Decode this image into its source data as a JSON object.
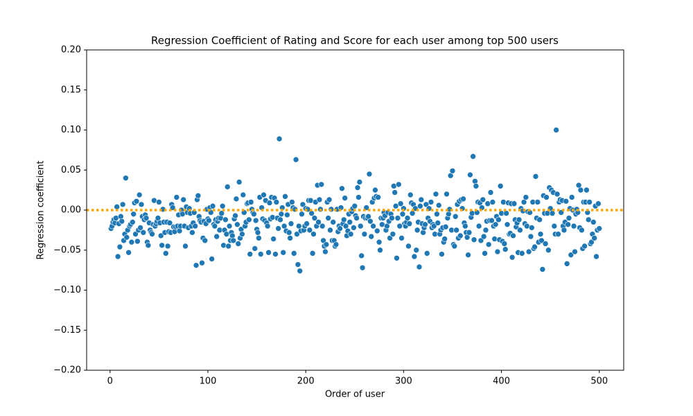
{
  "chart_data": {
    "type": "scatter",
    "title": "Regression Coefficient of Rating and Score for each user among top 500 users",
    "xlabel": "Order of user",
    "ylabel": "Regression coefficient",
    "color": "#1f77b4",
    "hline": {
      "value": 0,
      "color": "#ffa500"
    },
    "xlim": [
      -23.95,
      524.95
    ],
    "xticks": [
      0,
      100,
      200,
      300,
      400,
      500
    ],
    "ylim": [
      -0.2,
      0.2
    ],
    "yticks": [
      {
        "value": -0.2,
        "label": "−0.20"
      },
      {
        "value": -0.15,
        "label": "−0.15"
      },
      {
        "value": -0.1,
        "label": "−0.10"
      },
      {
        "value": -0.05,
        "label": "−0.05"
      },
      {
        "value": 0,
        "label": "0.00"
      },
      {
        "value": 0.05,
        "label": "0.05"
      },
      {
        "value": 0.1,
        "label": "0.10"
      },
      {
        "value": 0.15,
        "label": "0.15"
      },
      {
        "value": 0.2,
        "label": "0.20"
      }
    ],
    "x": [
      1,
      2,
      3,
      4,
      5,
      6,
      7,
      8,
      9,
      10,
      11,
      12,
      13,
      14,
      15,
      16,
      17,
      18,
      19,
      20,
      21,
      22,
      23,
      24,
      25,
      26,
      27,
      28,
      29,
      30,
      31,
      32,
      33,
      34,
      35,
      36,
      37,
      38,
      39,
      40,
      41,
      42,
      43,
      44,
      45,
      46,
      47,
      48,
      49,
      50,
      51,
      52,
      53,
      54,
      55,
      56,
      57,
      58,
      59,
      60,
      61,
      62,
      63,
      64,
      65,
      66,
      67,
      68,
      69,
      70,
      71,
      72,
      73,
      74,
      75,
      76,
      77,
      78,
      79,
      80,
      81,
      82,
      83,
      84,
      85,
      86,
      87,
      88,
      89,
      90,
      91,
      92,
      93,
      94,
      95,
      96,
      97,
      98,
      99,
      100,
      101,
      102,
      103,
      104,
      105,
      106,
      107,
      108,
      109,
      110,
      111,
      112,
      113,
      114,
      115,
      116,
      117,
      118,
      119,
      120,
      121,
      122,
      123,
      124,
      125,
      126,
      127,
      128,
      129,
      130,
      131,
      132,
      133,
      134,
      135,
      136,
      137,
      138,
      139,
      140,
      141,
      142,
      143,
      144,
      145,
      146,
      147,
      148,
      149,
      150,
      151,
      152,
      153,
      154,
      155,
      156,
      157,
      158,
      159,
      160,
      161,
      162,
      163,
      164,
      165,
      166,
      167,
      168,
      169,
      170,
      171,
      172,
      173,
      174,
      175,
      176,
      177,
      178,
      179,
      180,
      181,
      182,
      183,
      184,
      185,
      186,
      187,
      188,
      189,
      190,
      191,
      192,
      193,
      194,
      195,
      196,
      197,
      198,
      199,
      200,
      201,
      202,
      203,
      204,
      205,
      206,
      207,
      208,
      209,
      210,
      211,
      212,
      213,
      214,
      215,
      216,
      217,
      218,
      219,
      220,
      221,
      222,
      223,
      224,
      225,
      226,
      227,
      228,
      229,
      230,
      231,
      232,
      233,
      234,
      235,
      236,
      237,
      238,
      239,
      240,
      241,
      242,
      243,
      244,
      245,
      246,
      247,
      248,
      249,
      250,
      251,
      252,
      253,
      254,
      255,
      256,
      257,
      258,
      259,
      260,
      261,
      262,
      263,
      264,
      265,
      266,
      267,
      268,
      269,
      270,
      271,
      272,
      273,
      274,
      275,
      276,
      277,
      278,
      279,
      280,
      281,
      282,
      283,
      284,
      285,
      286,
      287,
      288,
      289,
      290,
      291,
      292,
      293,
      294,
      295,
      296,
      297,
      298,
      299,
      300,
      301,
      302,
      303,
      304,
      305,
      306,
      307,
      308,
      309,
      310,
      311,
      312,
      313,
      314,
      315,
      316,
      317,
      318,
      319,
      320,
      321,
      322,
      323,
      324,
      325,
      326,
      327,
      328,
      329,
      330,
      331,
      332,
      333,
      334,
      335,
      336,
      337,
      338,
      339,
      340,
      341,
      342,
      343,
      344,
      345,
      346,
      347,
      348,
      349,
      350,
      351,
      352,
      353,
      354,
      355,
      356,
      357,
      358,
      359,
      360,
      361,
      362,
      363,
      364,
      365,
      366,
      367,
      368,
      369,
      370,
      371,
      372,
      373,
      374,
      375,
      376,
      377,
      378,
      379,
      380,
      381,
      382,
      383,
      384,
      385,
      386,
      387,
      388,
      389,
      390,
      391,
      392,
      393,
      394,
      395,
      396,
      397,
      398,
      399,
      400,
      401,
      402,
      403,
      404,
      405,
      406,
      407,
      408,
      409,
      410,
      411,
      412,
      413,
      414,
      415,
      416,
      417,
      418,
      419,
      420,
      421,
      422,
      423,
      424,
      425,
      426,
      427,
      428,
      429,
      430,
      431,
      432,
      433,
      434,
      435,
      436,
      437,
      438,
      439,
      440,
      441,
      442,
      443,
      444,
      445,
      446,
      447,
      448,
      449,
      450,
      451,
      452,
      453,
      454,
      455,
      456,
      457,
      458,
      459,
      460,
      461,
      462,
      463,
      464,
      465,
      466,
      467,
      468,
      469,
      470,
      471,
      472,
      473,
      474,
      475,
      476,
      477,
      478,
      479,
      480,
      481,
      482,
      483,
      484,
      485,
      486,
      487,
      488,
      489,
      490,
      491,
      492,
      493,
      494,
      495,
      496,
      497,
      498,
      499,
      500
    ],
    "values": [
      -0.023,
      -0.02,
      -0.015,
      -0.012,
      -0.016,
      -0.01,
      0.004,
      -0.058,
      -0.017,
      -0.046,
      -0.008,
      -0.014,
      0.007,
      -0.038,
      -0.03,
      0.04,
      -0.034,
      -0.025,
      -0.053,
      -0.02,
      -0.018,
      -0.04,
      -0.015,
      -0.005,
      0.009,
      -0.03,
      0.011,
      -0.039,
      -0.025,
      0.019,
      -0.022,
      0.007,
      -0.008,
      -0.028,
      -0.012,
      -0.006,
      -0.01,
      -0.04,
      -0.044,
      -0.016,
      -0.025,
      -0.028,
      -0.03,
      -0.018,
      0.012,
      -0.02,
      -0.017,
      -0.014,
      -0.01,
      0.01,
      -0.016,
      -0.032,
      -0.044,
      0.001,
      -0.015,
      -0.028,
      -0.054,
      -0.015,
      -0.045,
      -0.027,
      -0.016,
      -0.028,
      0.007,
      0.003,
      -0.021,
      -0.027,
      -0.021,
      0.016,
      -0.02,
      -0.006,
      -0.026,
      -0.02,
      0,
      -0.005,
      0.013,
      -0.02,
      -0.045,
      0.004,
      -0.003,
      -0.022,
      0.002,
      -0.004,
      -0.02,
      -0.028,
      -0.016,
      -0.003,
      -0.02,
      -0.069,
      0.013,
      0.018,
      -0.008,
      -0.013,
      -0.015,
      -0.066,
      -0.035,
      -0.014,
      -0.038,
      -0.017,
      0.001,
      -0.011,
      -0.013,
      0.003,
      -0.003,
      -0.061,
      0.005,
      -0.018,
      -0.02,
      -0.012,
      -0.033,
      -0.014,
      -0.01,
      -0.025,
      -0.01,
      -0.004,
      0.005,
      -0.044,
      -0.025,
      -0.012,
      -0.03,
      0.029,
      -0.045,
      -0.02,
      -0.038,
      -0.028,
      -0.032,
      -0.038,
      -0.011,
      -0.007,
      0.014,
      -0.018,
      -0.042,
      0.035,
      -0.035,
      -0.024,
      -0.03,
      0.019,
      -0.003,
      -0.02,
      -0.015,
      0.008,
      0.009,
      -0.012,
      -0.055,
      0.01,
      0.001,
      -0.003,
      -0.005,
      -0.048,
      -0.013,
      -0.024,
      -0.028,
      -0.035,
      0.016,
      -0.055,
      0.003,
      -0.011,
      0.019,
      -0.013,
      0.012,
      -0.016,
      -0.02,
      -0.053,
      0.009,
      -0.011,
      0.016,
      -0.009,
      -0.036,
      0.015,
      -0.055,
      0.01,
      -0.01,
      -0.023,
      0.089,
      -0.012,
      -0.005,
      0.003,
      -0.053,
      -0.02,
      0.017,
      -0.026,
      -0.006,
      0.007,
      -0.028,
      -0.035,
      -0.017,
      0.01,
      0.003,
      -0.054,
      0.001,
      0.063,
      -0.03,
      -0.068,
      -0.02,
      -0.076,
      -0.026,
      -0.005,
      0.007,
      -0.025,
      -0.02,
      0.002,
      -0.017,
      0.001,
      0.012,
      -0.025,
      0.012,
      -0.004,
      -0.054,
      -0.03,
      -0.01,
      0.01,
      -0.02,
      0.031,
      -0.015,
      0.013,
      0.001,
      0.032,
      -0.02,
      -0.038,
      -0.045,
      -0.052,
      -0.043,
      0.01,
      -0.01,
      0.013,
      -0.025,
      0.001,
      -0.038,
      -0.015,
      -0.038,
      -0.045,
      -0.043,
      0.001,
      -0.027,
      -0.02,
      -0.023,
      0.003,
      0.027,
      -0.017,
      -0.012,
      0.015,
      -0.02,
      -0.032,
      -0.026,
      -0.005,
      -0.015,
      -0.03,
      -0.002,
      0.002,
      -0.022,
      0.005,
      -0.007,
      -0.01,
      0.028,
      0.016,
      0.035,
      -0.02,
      -0.057,
      -0.072,
      -0.008,
      -0.03,
      -0.01,
      0.003,
      -0.01,
      -0.008,
      0.045,
      -0.014,
      -0.033,
      0.01,
      -0.02,
      0.015,
      0.025,
      0.017,
      -0.026,
      0.016,
      -0.04,
      -0.05,
      -0.01,
      -0.018,
      -0.01,
      -0.003,
      -0.007,
      -0.025,
      -0.02,
      -0.003,
      -0.014,
      -0.035,
      -0.005,
      -0.01,
      -0.03,
      0.03,
      0.022,
      0.005,
      -0.06,
      -0.01,
      0.032,
      -0.02,
      0.008,
      -0.035,
      -0.005,
      0.002,
      -0.017,
      -0.02,
      -0.015,
      -0.01,
      -0.045,
      -0.017,
      0.019,
      0.009,
      -0.004,
      0.007,
      -0.058,
      0.002,
      -0.05,
      -0.025,
      -0.015,
      -0.071,
      0.005,
      0.013,
      -0.017,
      -0.028,
      -0.022,
      -0.018,
      0.007,
      -0.054,
      -0.01,
      0.002,
      -0.014,
      0.01,
      -0.022,
      -0.018,
      -0.02,
      -0.03,
      0.02,
      -0.005,
      -0.016,
      0.006,
      -0.03,
      -0.025,
      -0.055,
      -0.022,
      -0.04,
      -0.036,
      -0.021,
      0.02,
      -0.01,
      -0.005,
      0.001,
      0.043,
      -0.025,
      0.049,
      -0.043,
      -0.045,
      -0.008,
      -0.025,
      0.007,
      -0.035,
      0.011,
      -0.032,
      0.013,
      0.002,
      0.014,
      -0.016,
      -0.02,
      -0.028,
      -0.034,
      -0.056,
      -0.028,
      0.044,
      -0.009,
      -0.004,
      0.067,
      -0.037,
      0.036,
      0.03,
      -0.003,
      0.01,
      -0.02,
      0.009,
      -0.038,
      0.003,
      0.013,
      -0.033,
      -0.054,
      -0.025,
      -0.014,
      0.008,
      -0.043,
      -0.013,
      0.022,
      -0.013,
      0.01,
      -0.02,
      -0.036,
      -0.018,
      -0.008,
      -0.052,
      -0.012,
      -0.037,
      0.03,
      -0.004,
      -0.039,
      0.01,
      -0.042,
      -0.049,
      -0.004,
      -0.018,
      0.009,
      -0.03,
      -0.029,
      0.008,
      -0.059,
      -0.032,
      0.008,
      -0.012,
      -0.021,
      -0.016,
      -0.053,
      -0.012,
      -0.025,
      0.002,
      -0.054,
      -0.001,
      0.01,
      -0.017,
      0.016,
      -0.02,
      -0.002,
      -0.052,
      -0.003,
      -0.033,
      -0.022,
      0.01,
      -0.048,
      -0.046,
      0.042,
      -0.01,
      0.01,
      -0.04,
      -0.012,
      -0.03,
      -0.038,
      -0.074,
      0.018,
      -0.004,
      -0.042,
      0.016,
      -0.004,
      -0.05,
      0.028,
      0.002,
      0.025,
      -0.004,
      0.022,
      -0.02,
      -0.03,
      0.1,
      0.02,
      -0.03,
      0.01,
      0.013,
      -0.003,
      0.012,
      -0.02,
      -0.025,
      -0.015,
      0.011,
      -0.067,
      -0.018,
      -0.01,
      0.002,
      -0.056,
      0.016,
      0,
      -0.02,
      -0.052,
      -0.005,
      0.001,
      -0.003,
      0.031,
      -0.022,
      0.025,
      -0.025,
      -0.048,
      0.01,
      -0.045,
      0.01,
      0.025,
      -0.003,
      -0.012,
      0.01,
      -0.042,
      -0.04,
      -0.03,
      -0.015,
      -0.035,
      0.005,
      -0.058,
      -0.025,
      0.008,
      -0.023
    ]
  }
}
